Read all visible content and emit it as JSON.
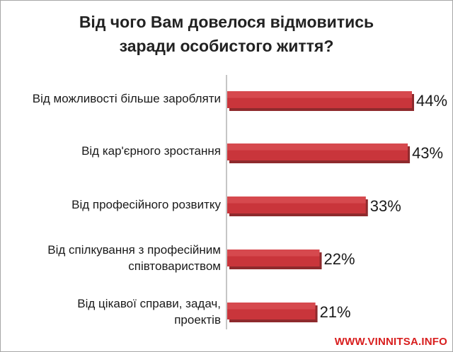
{
  "chart_data": {
    "type": "bar",
    "orientation": "horizontal",
    "title_lines": [
      "Від чого Вам довелося відмовитись",
      "заради особистого життя?"
    ],
    "categories": [
      "Від можливості більше заробляти",
      "Від кар'єрного зростання",
      "Від професійного розвитку",
      "Від спілкування з професійним співтовариством",
      "Від цікавої справи, задач, проектів"
    ],
    "category_lines": [
      [
        "Від можливості більше заробляти"
      ],
      [
        "Від кар'єрного зростання"
      ],
      [
        "Від професійного розвитку"
      ],
      [
        "Від спілкування з професійним",
        "співтовариством"
      ],
      [
        "Від цікавої справи, задач,",
        "проектів"
      ]
    ],
    "values": [
      44,
      43,
      33,
      22,
      21
    ],
    "value_labels": [
      "44%",
      "43%",
      "33%",
      "22%",
      "21%"
    ],
    "xlim": [
      0,
      50
    ],
    "grid": false,
    "legend": "none",
    "bar_color": "#c9353b",
    "bar_shadow_color": "#8e2a2d"
  },
  "watermark": "WWW.VINNITSA.INFO"
}
